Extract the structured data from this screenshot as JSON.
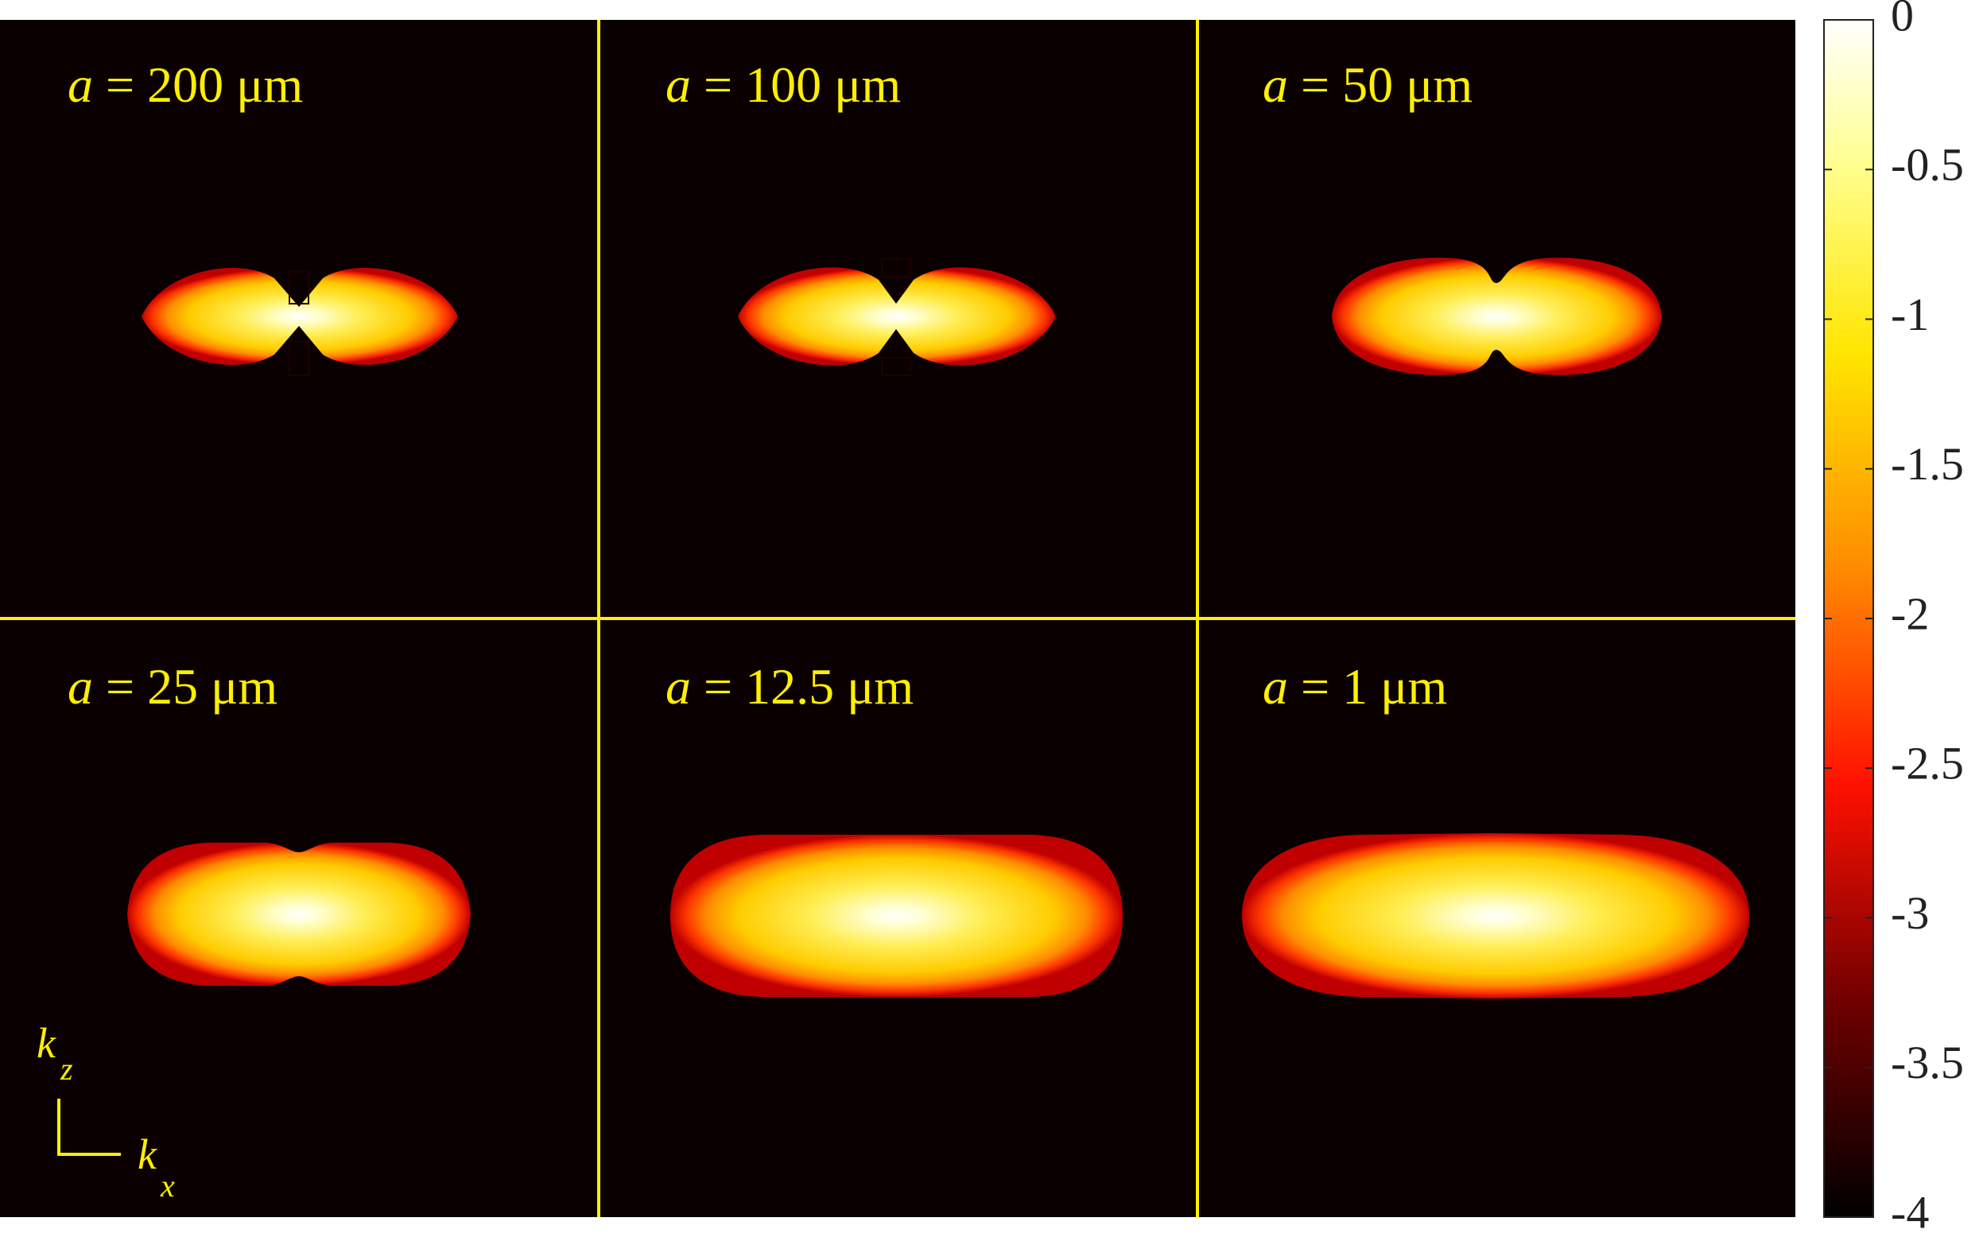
{
  "chart_data": {
    "type": "heatmap",
    "layout": "2x3 panel grid",
    "panels": [
      {
        "label_var": "a",
        "label_rest": " = 200 μm",
        "a_um": 200
      },
      {
        "label_var": "a",
        "label_rest": " = 100 μm",
        "a_um": 100
      },
      {
        "label_var": "a",
        "label_rest": " = 50 μm",
        "a_um": 50
      },
      {
        "label_var": "a",
        "label_rest": " = 25 μm",
        "a_um": 25
      },
      {
        "label_var": "a",
        "label_rest": " = 12.5 μm",
        "a_um": 12.5
      },
      {
        "label_var": "a",
        "label_rest": " = 1 μm",
        "a_um": 1
      }
    ],
    "axes": {
      "x_label": "k",
      "x_sub": "x",
      "z_label": "k",
      "z_sub": "z"
    },
    "colorbar": {
      "range": [
        -4,
        0
      ],
      "ticks": [
        0,
        -0.5,
        -1,
        -1.5,
        -2,
        -2.5,
        -3,
        -3.5,
        -4
      ],
      "tick_labels": [
        "0",
        "-0.5",
        "-1",
        "-1.5",
        "-2",
        "-2.5",
        "-3",
        "-3.5",
        "-4"
      ],
      "colormap": "hot",
      "colormap_stops": [
        "#000000",
        "#b00000",
        "#ff1a00",
        "#ff8a00",
        "#ffe600",
        "#ffff80",
        "#ffffff"
      ]
    },
    "background_color": "#0a0000",
    "divider_color": "#ffef00"
  }
}
